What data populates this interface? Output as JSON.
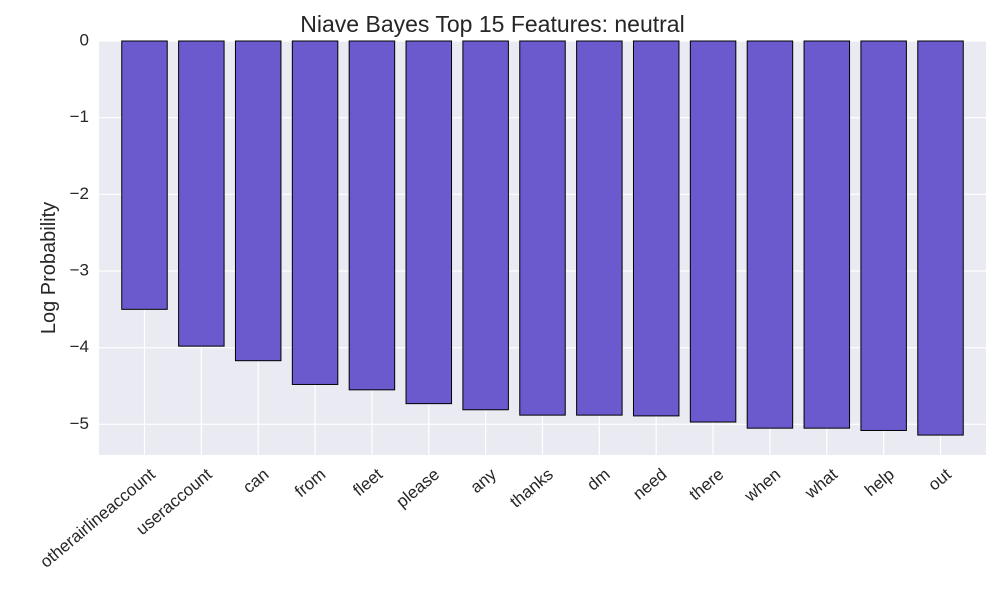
{
  "chart_data": {
    "type": "bar",
    "title": "Niave Bayes Top 15 Features: neutral",
    "xlabel": "",
    "ylabel": "Log Probability",
    "categories": [
      "otherairlineaccount",
      "useraccount",
      "can",
      "from",
      "fleet",
      "please",
      "any",
      "thanks",
      "dm",
      "need",
      "there",
      "when",
      "what",
      "help",
      "out"
    ],
    "values": [
      -3.5,
      -3.98,
      -4.17,
      -4.48,
      -4.55,
      -4.73,
      -4.81,
      -4.88,
      -4.88,
      -4.89,
      -4.97,
      -5.05,
      -5.05,
      -5.08,
      -5.14
    ],
    "ylim": [
      -5.4,
      0
    ],
    "yticks": [
      0,
      -1,
      -2,
      -3,
      -4,
      -5
    ],
    "ytick_labels": [
      "0",
      "−1",
      "−2",
      "−3",
      "−4",
      "−5"
    ],
    "grid": true,
    "colors": {
      "bar": "#6a5acd",
      "bar_edge": "#000000",
      "plot_background": "#eaeaf2",
      "grid": "#ffffff"
    }
  }
}
